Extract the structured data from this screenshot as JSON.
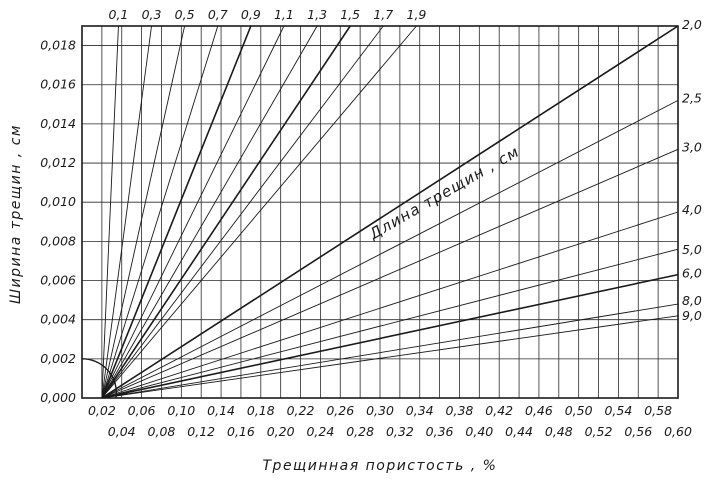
{
  "chart_data": {
    "type": "line",
    "title": "",
    "xlabel": "Трещинная пористость , %",
    "ylabel": "Ширина трещин , см",
    "series_label": "Длина трещин , см",
    "xlim": [
      0,
      0.6
    ],
    "ylim": [
      0,
      0.019
    ],
    "x_ticks_upper_row": [
      "0,02",
      "0,06",
      "0,10",
      "0,14",
      "0,18",
      "0,22",
      "0,26",
      "0,30",
      "0,34",
      "0,38",
      "0,42",
      "0,46",
      "0,50",
      "0,54",
      "0,58"
    ],
    "x_ticks_lower_row": [
      "0,04",
      "0,08",
      "0,12",
      "0,16",
      "0,20",
      "0,24",
      "0,28",
      "0,32",
      "0,36",
      "0,40",
      "0,44",
      "0,48",
      "0,52",
      "0,56",
      "0,60"
    ],
    "y_ticks": [
      "0,000",
      "0,002",
      "0,004",
      "0,006",
      "0,008",
      "0,010",
      "0,012",
      "0,014",
      "0,016",
      "0,018"
    ],
    "top_labels": [
      "0,1",
      "0,3",
      "0,5",
      "0,7",
      "0,9",
      "1,1",
      "1,3",
      "1,5",
      "1,7",
      "1,9"
    ],
    "right_labels": [
      "2,0",
      "2,5",
      "3,0",
      "4,0",
      "5,0",
      "6,0",
      "8,0",
      "9,0"
    ],
    "grid": true,
    "series": [
      {
        "name": "0,1",
        "points": [
          [
            0.02,
            0
          ],
          [
            0.0367,
            0.019
          ]
        ]
      },
      {
        "name": "0,3",
        "points": [
          [
            0.02,
            0
          ],
          [
            0.07,
            0.019
          ]
        ]
      },
      {
        "name": "0,5",
        "points": [
          [
            0.02,
            0
          ],
          [
            0.1033,
            0.019
          ]
        ]
      },
      {
        "name": "0,7",
        "points": [
          [
            0.02,
            0
          ],
          [
            0.1367,
            0.019
          ]
        ]
      },
      {
        "name": "0,9",
        "points": [
          [
            0.02,
            0
          ],
          [
            0.17,
            0.019
          ]
        ]
      },
      {
        "name": "1,1",
        "points": [
          [
            0.02,
            0
          ],
          [
            0.2033,
            0.019
          ]
        ]
      },
      {
        "name": "1,3",
        "points": [
          [
            0.02,
            0
          ],
          [
            0.2367,
            0.019
          ]
        ]
      },
      {
        "name": "1,5",
        "points": [
          [
            0.02,
            0
          ],
          [
            0.27,
            0.019
          ]
        ]
      },
      {
        "name": "1,7",
        "points": [
          [
            0.02,
            0
          ],
          [
            0.3033,
            0.019
          ]
        ]
      },
      {
        "name": "1,9",
        "points": [
          [
            0.02,
            0
          ],
          [
            0.3367,
            0.019
          ]
        ]
      },
      {
        "name": "2,0",
        "points": [
          [
            0.02,
            0
          ],
          [
            0.6,
            0.019
          ]
        ]
      },
      {
        "name": "2,5",
        "points": [
          [
            0.02,
            0
          ],
          [
            0.6,
            0.0152
          ]
        ]
      },
      {
        "name": "3,0",
        "points": [
          [
            0.02,
            0
          ],
          [
            0.6,
            0.0127
          ]
        ]
      },
      {
        "name": "4,0",
        "points": [
          [
            0.02,
            0
          ],
          [
            0.6,
            0.0095
          ]
        ]
      },
      {
        "name": "5,0",
        "points": [
          [
            0.02,
            0
          ],
          [
            0.6,
            0.0076
          ]
        ]
      },
      {
        "name": "6,0",
        "points": [
          [
            0.02,
            0
          ],
          [
            0.6,
            0.0063
          ]
        ]
      },
      {
        "name": "8,0",
        "points": [
          [
            0.02,
            0
          ],
          [
            0.6,
            0.0048
          ]
        ]
      },
      {
        "name": "9,0",
        "points": [
          [
            0.02,
            0
          ],
          [
            0.6,
            0.0042
          ]
        ]
      }
    ]
  }
}
